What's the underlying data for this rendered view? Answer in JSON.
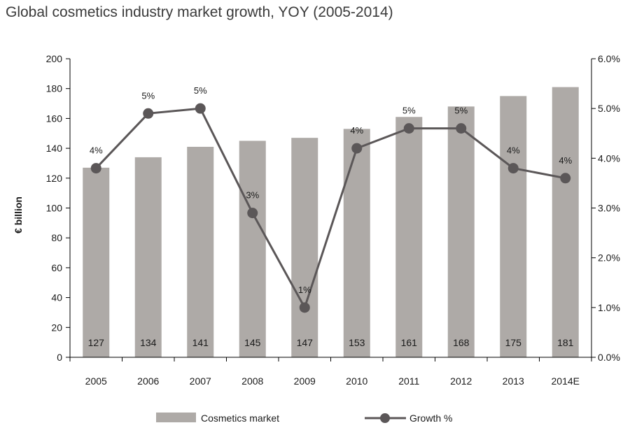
{
  "chart_data": {
    "type": "bar",
    "title": "Global cosmetics industry market growth, YOY (2005-2014)",
    "categories": [
      "2005",
      "2006",
      "2007",
      "2008",
      "2009",
      "2010",
      "2011",
      "2012",
      "2013",
      "2014E"
    ],
    "series": [
      {
        "name": "Cosmetics market",
        "type": "bar",
        "axis": "left",
        "values": [
          127,
          134,
          141,
          145,
          147,
          153,
          161,
          168,
          175,
          181
        ],
        "color": "#aeaaa7"
      },
      {
        "name": "Growth %",
        "type": "line",
        "axis": "right",
        "values": [
          3.8,
          4.9,
          5.0,
          2.9,
          1.0,
          4.2,
          4.6,
          4.6,
          3.8,
          3.6
        ],
        "labels": [
          "4%",
          "5%",
          "5%",
          "3%",
          "1%",
          "4%",
          "5%",
          "5%",
          "4%",
          "4%"
        ],
        "color": "#5b5758"
      }
    ],
    "y_left": {
      "label": "€ billion",
      "range": [
        0,
        200
      ],
      "ticks": [
        "0",
        "20",
        "40",
        "60",
        "80",
        "100",
        "120",
        "140",
        "160",
        "180",
        "200"
      ]
    },
    "y_right": {
      "label": "",
      "range": [
        0,
        6
      ],
      "ticks": [
        "0.0%",
        "1.0%",
        "2.0%",
        "3.0%",
        "4.0%",
        "5.0%",
        "6.0%"
      ]
    },
    "grid": false,
    "legend_position": "bottom"
  }
}
